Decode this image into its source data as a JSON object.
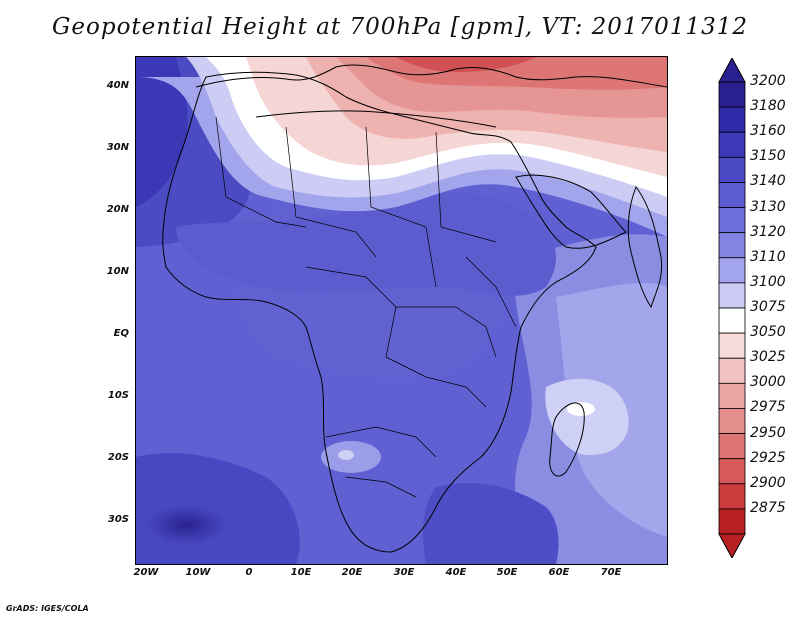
{
  "title": "Geopotential Height at 700hPa [gpm], VT: 2017011312",
  "credit": "GrADS: IGES/COLA",
  "map": {
    "variable": "Geopotential Height",
    "level": "700hPa",
    "units": "gpm",
    "valid_time": "2017011312",
    "lat_range": [
      -36,
      45
    ],
    "lon_range": [
      -22,
      80
    ],
    "lat_ticks": [
      {
        "lat": 40,
        "label": "40N"
      },
      {
        "lat": 30,
        "label": "30N"
      },
      {
        "lat": 20,
        "label": "20N"
      },
      {
        "lat": 10,
        "label": "10N"
      },
      {
        "lat": 0,
        "label": "EQ"
      },
      {
        "lat": -10,
        "label": "10S"
      },
      {
        "lat": -20,
        "label": "20S"
      },
      {
        "lat": -30,
        "label": "30S"
      }
    ],
    "lon_ticks": [
      {
        "lon": -20,
        "label": "20W"
      },
      {
        "lon": -10,
        "label": "10W"
      },
      {
        "lon": 0,
        "label": "0"
      },
      {
        "lon": 10,
        "label": "10E"
      },
      {
        "lon": 20,
        "label": "20E"
      },
      {
        "lon": 30,
        "label": "30E"
      },
      {
        "lon": 40,
        "label": "40E"
      },
      {
        "lon": 50,
        "label": "50E"
      },
      {
        "lon": 60,
        "label": "60E"
      },
      {
        "lon": 70,
        "label": "70E"
      }
    ]
  },
  "legend": {
    "levels": [
      {
        "label": "3200",
        "color": "#2a1f8f"
      },
      {
        "label": "3180",
        "color": "#2e2aa8"
      },
      {
        "label": "3160",
        "color": "#3b39b8"
      },
      {
        "label": "3150",
        "color": "#4a4ac4"
      },
      {
        "label": "3140",
        "color": "#5b5dd0"
      },
      {
        "label": "3130",
        "color": "#6d6fda"
      },
      {
        "label": "3120",
        "color": "#8383e2"
      },
      {
        "label": "3110",
        "color": "#a3a5ec"
      },
      {
        "label": "3100",
        "color": "#ccccf4"
      },
      {
        "label": "3075",
        "color": "#ffffff"
      },
      {
        "label": "3050",
        "color": "#f7dcdc"
      },
      {
        "label": "3025",
        "color": "#f1c3c1"
      },
      {
        "label": "3000",
        "color": "#eaa6a4"
      },
      {
        "label": "2975",
        "color": "#e38e8c"
      },
      {
        "label": "2950",
        "color": "#dd7574"
      },
      {
        "label": "2925",
        "color": "#d65a5b"
      },
      {
        "label": "2900",
        "color": "#cc3b3d"
      },
      {
        "label": "2875",
        "color": "#b81f22"
      }
    ]
  }
}
